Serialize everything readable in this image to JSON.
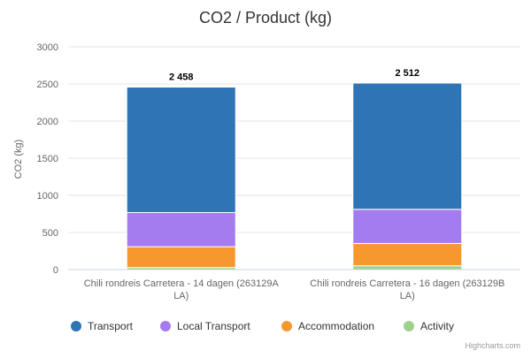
{
  "chart_data": {
    "type": "bar",
    "stacked": true,
    "title": "CO2 / Product (kg)",
    "ylabel": "CO2 (kg)",
    "ylim": [
      0,
      3000
    ],
    "yticks": [
      "0",
      "500",
      "1000",
      "1500",
      "2000",
      "2500",
      "3000"
    ],
    "categories": [
      {
        "lines": [
          "Chili rondreis Carretera - 14 dagen (263129A",
          "LA)"
        ]
      },
      {
        "lines": [
          "Chili rondreis Carretera - 16 dagen (263129B",
          "LA)"
        ]
      }
    ],
    "totals": [
      "2 458",
      "2 512"
    ],
    "series": [
      {
        "name": "Transport",
        "color": "#2f74b5",
        "values": [
          1690,
          1700
        ]
      },
      {
        "name": "Local Transport",
        "color": "#a57bf0",
        "values": [
          460,
          460
        ]
      },
      {
        "name": "Accommodation",
        "color": "#f7982f",
        "values": [
          280,
          300
        ]
      },
      {
        "name": "Activity",
        "color": "#9ed18b",
        "values": [
          28,
          52
        ]
      }
    ],
    "grid": true,
    "legend": "bottom"
  },
  "credits": "Highcharts.com"
}
